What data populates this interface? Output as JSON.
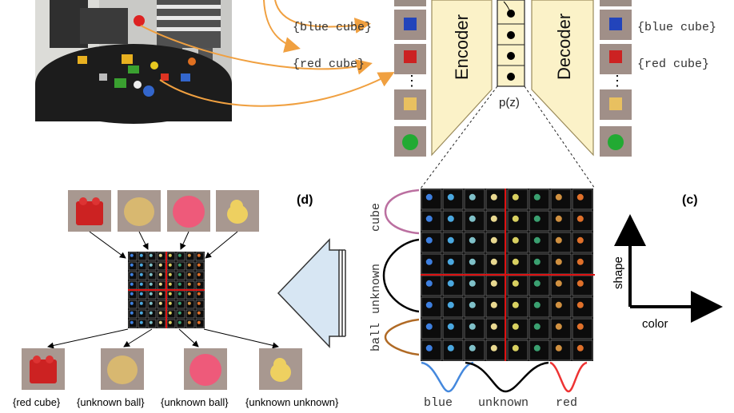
{
  "code_labels": {
    "blue_cube": "{blue cube}",
    "red_cube": "{red cube}"
  },
  "network": {
    "encoder": "Encoder",
    "decoder": "Decoder",
    "latent": "p(z)"
  },
  "panels": {
    "c": "(c)",
    "d": "(d)"
  },
  "axes": {
    "shape": "shape",
    "color": "color"
  },
  "grid_rows": {
    "cube": "cube",
    "unknown": "unknown",
    "ball": "ball"
  },
  "grid_cols": {
    "blue": "blue",
    "unknown": "unknown",
    "red": "red"
  },
  "bottom_labels": [
    "{red cube}",
    "{unknown ball}",
    "{unknown ball}",
    "{unknown unknown}"
  ],
  "colors": {
    "orange_arrow": "#f0a040",
    "encoder_fill": "#fbf2c8",
    "encoder_stroke": "#9a8a5a",
    "red_line": "#dd1111",
    "blue_curve": "#4488dd",
    "red_curve": "#ee3333",
    "pink_curve": "#bb6fa0",
    "brown_curve": "#b06a25",
    "arrow_fill": "#d7e6f3"
  },
  "icons": {
    "photo": "robot-table-photo",
    "cube_thumbs": "object-thumbnail-icon"
  }
}
